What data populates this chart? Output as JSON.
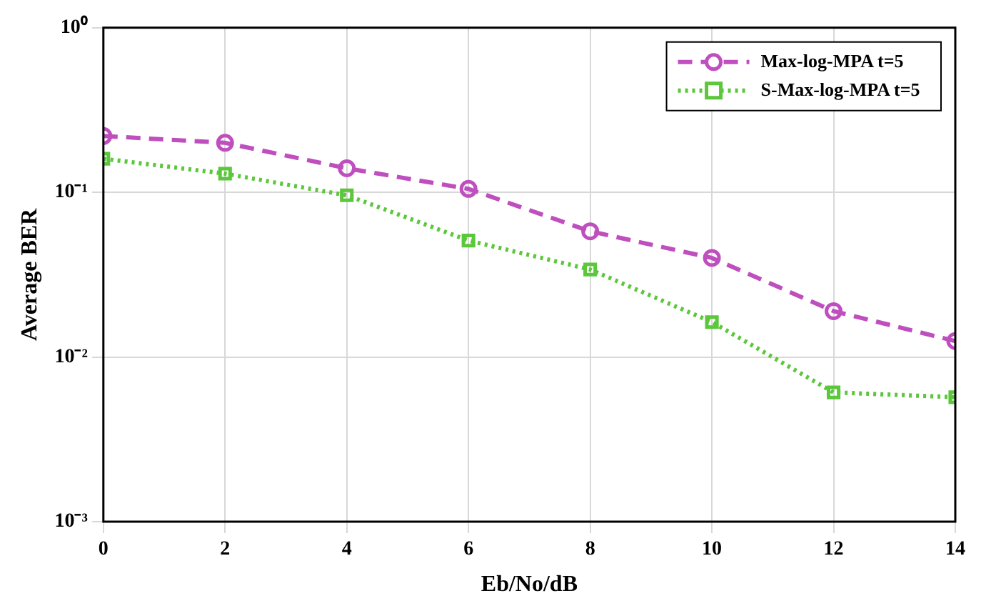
{
  "chart_data": {
    "type": "line",
    "xlabel": "Eb/No/dB",
    "ylabel": "Average BER",
    "x": [
      0,
      2,
      4,
      6,
      8,
      10,
      12,
      14
    ],
    "series": [
      {
        "name": "Max-log-MPA t=5",
        "color": "#bf4fbf",
        "values": [
          0.22,
          0.2,
          0.14,
          0.105,
          0.058,
          0.04,
          0.019,
          0.0125
        ],
        "marker": "circle",
        "line_style": "dashed"
      },
      {
        "name": "S-Max-log-MPA t=5",
        "color": "#5cc73c",
        "values": [
          0.16,
          0.13,
          0.096,
          0.051,
          0.034,
          0.0163,
          0.0061,
          0.0057
        ],
        "marker": "square",
        "line_style": "dotted"
      }
    ],
    "xlim": [
      0,
      14
    ],
    "xticks": [
      0,
      2,
      4,
      6,
      8,
      10,
      12,
      14
    ],
    "ylim": [
      0.001,
      1
    ],
    "yticks": [
      {
        "value": 0.001,
        "label": "10⁻³"
      },
      {
        "value": 0.01,
        "label": "10⁻²"
      },
      {
        "value": 0.1,
        "label": "10⁻¹"
      },
      {
        "value": 1,
        "label": "10⁰"
      }
    ],
    "log": "y",
    "grid": true,
    "legend": "top right"
  }
}
